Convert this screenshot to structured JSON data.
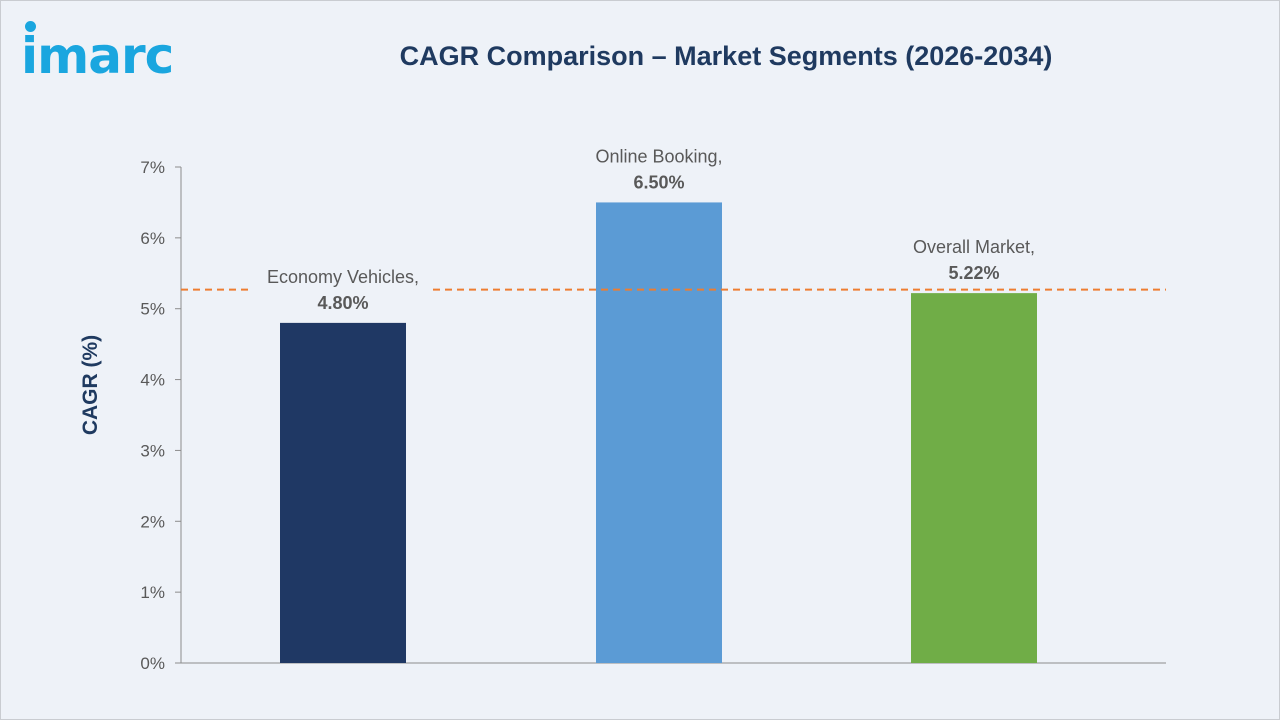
{
  "logo": {
    "text": "imarc",
    "color": "#1aa6df"
  },
  "chart_data": {
    "type": "bar",
    "title": "CAGR Comparison – Market Segments (2026-2034)",
    "ylabel": "CAGR (%)",
    "xlabel": "",
    "categories": [
      "Economy Vehicles",
      "Online Booking",
      "Overall Market"
    ],
    "values": [
      4.8,
      6.5,
      5.22
    ],
    "data_labels": [
      [
        "Economy Vehicles,",
        "4.80%"
      ],
      [
        "Online Booking,",
        "6.50%"
      ],
      [
        "Overall Market,",
        "5.22%"
      ]
    ],
    "colors": [
      "#1f3864",
      "#5b9bd5",
      "#70ad47"
    ],
    "ylim": [
      0,
      7
    ],
    "yticks": [
      0,
      1,
      2,
      3,
      4,
      5,
      6,
      7
    ],
    "ytick_labels": [
      "0%",
      "1%",
      "2%",
      "3%",
      "4%",
      "5%",
      "6%",
      "7%"
    ],
    "reference_line": {
      "value": 5.27,
      "color": "#ed7d31",
      "style": "dashed"
    },
    "grid": false,
    "legend": "none"
  }
}
